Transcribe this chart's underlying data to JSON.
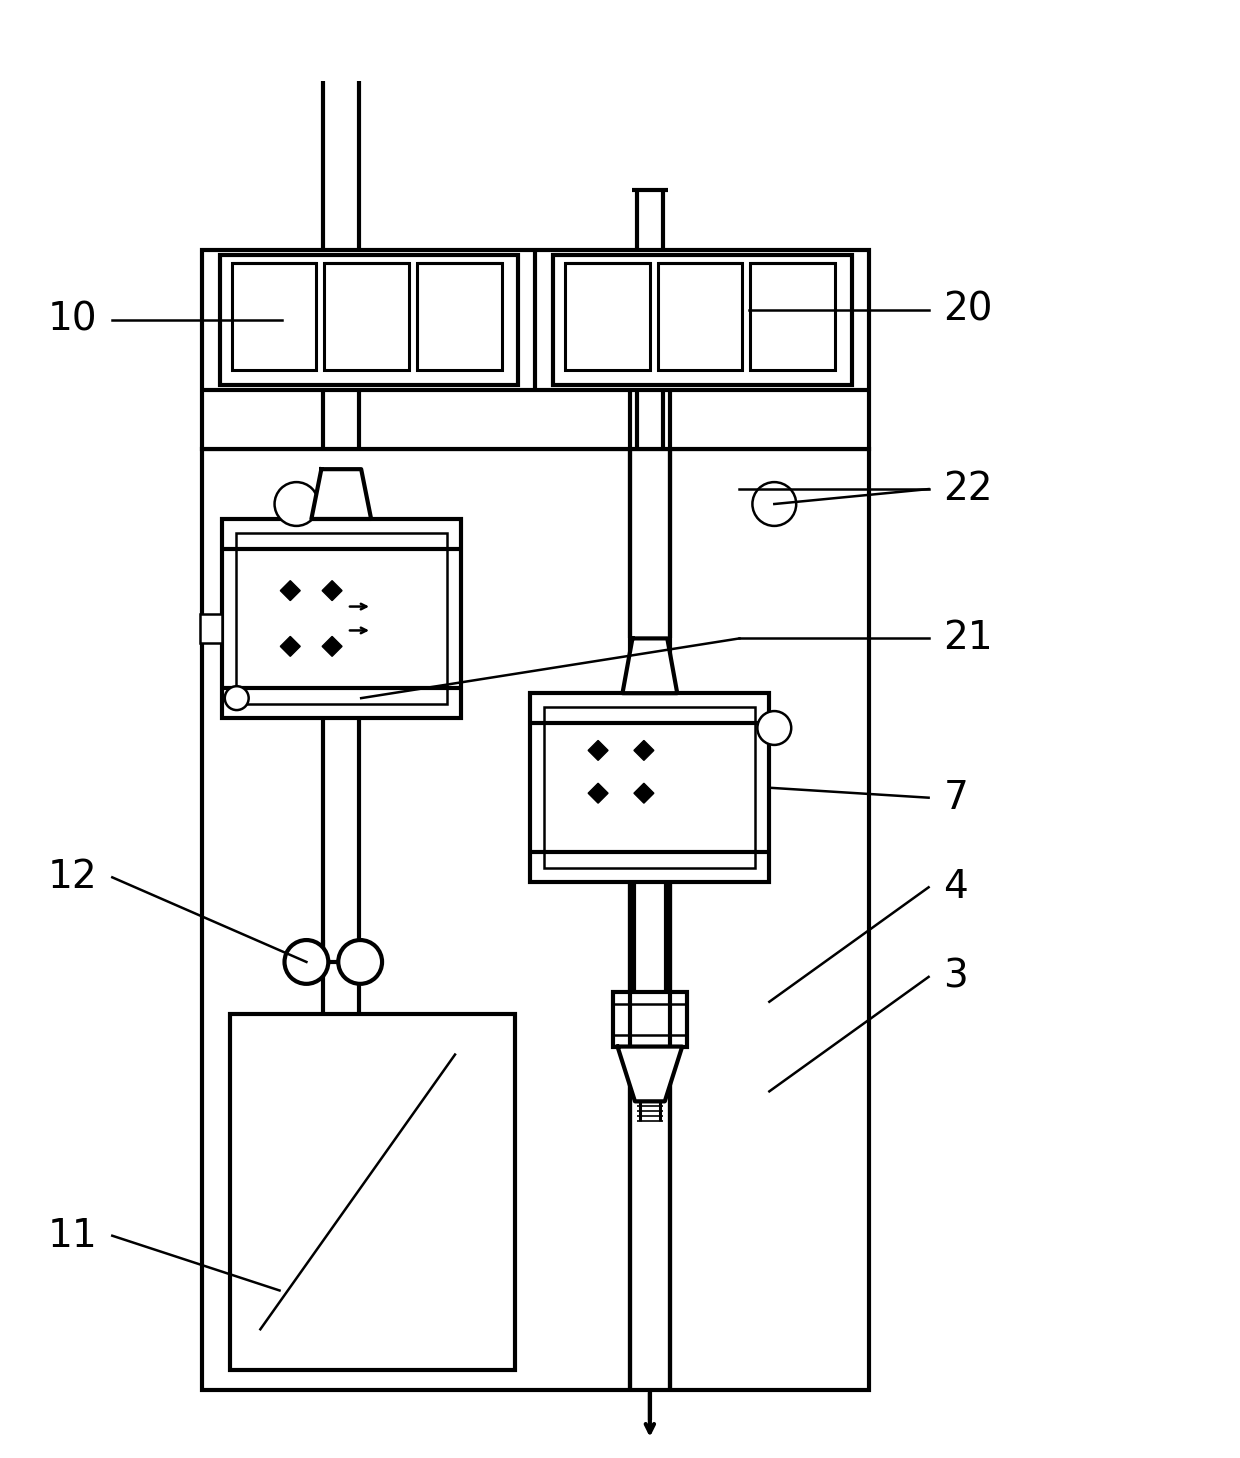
{
  "bg_color": "#ffffff",
  "line_color": "#000000",
  "lw": 3.0,
  "lw_thin": 1.8,
  "lw_med": 2.2,
  "figsize": [
    12.4,
    14.58
  ],
  "dpi": 100
}
